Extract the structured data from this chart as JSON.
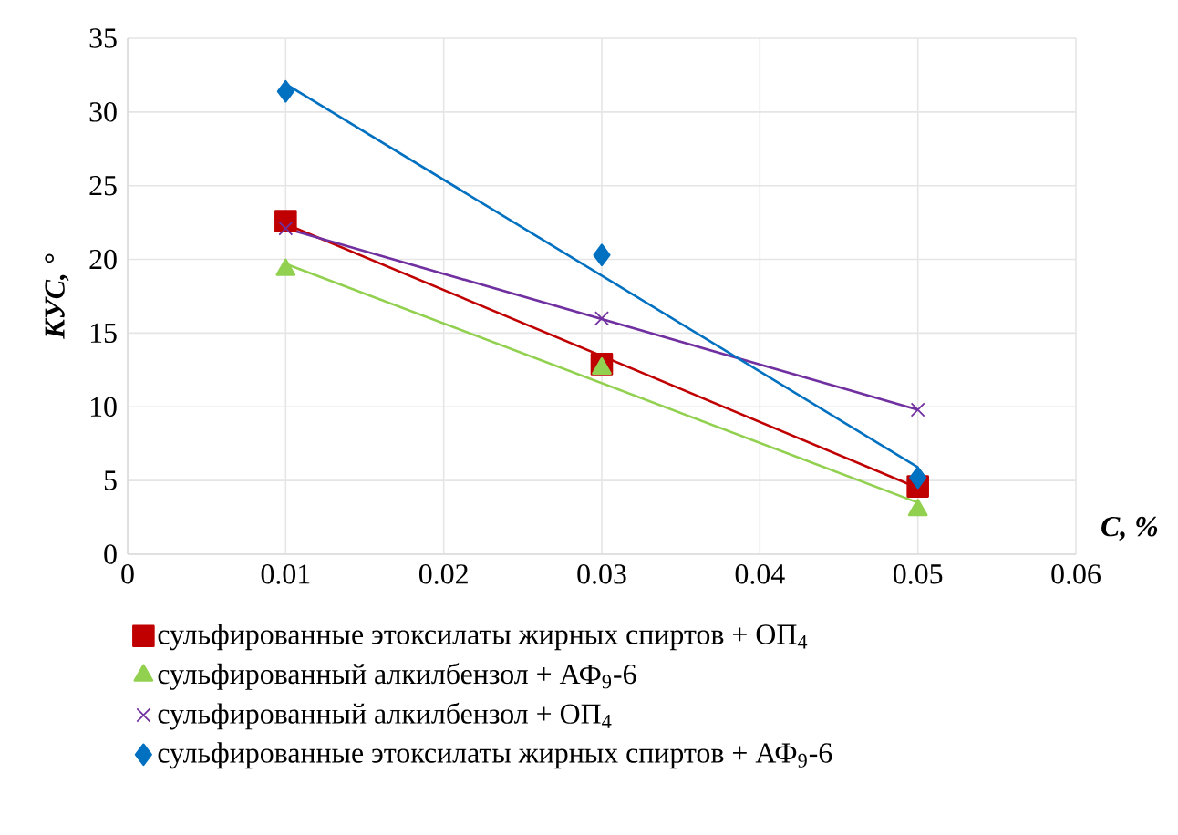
{
  "chart_data": {
    "type": "scatter",
    "xlabel": "*C, %*",
    "ylabel": "*КУС, °*",
    "xlim": [
      0,
      0.06
    ],
    "xticks": [
      0,
      0.01,
      0.02,
      0.03,
      0.04,
      0.05,
      0.06
    ],
    "ylim": [
      0,
      35
    ],
    "yticks": [
      0,
      5,
      10,
      15,
      20,
      25,
      30,
      35
    ],
    "grid": true,
    "legend": "bottom",
    "series": [
      {
        "name": "сульфированные этоксилаты жирных спиртов + ОП$_{4}$",
        "color": "#c00000",
        "marker": "square",
        "x": [
          0.01,
          0.03,
          0.05
        ],
        "values": [
          22.6,
          12.9,
          4.6
        ]
      },
      {
        "name": "сульфированный алкилбензол + АФ$_{9}$-6",
        "color": "#92d050",
        "marker": "triangle",
        "x": [
          0.01,
          0.03,
          0.05
        ],
        "values": [
          19.3,
          12.6,
          3.0
        ]
      },
      {
        "name": "сульфированный алкилбензол + ОП$_{4}$",
        "color": "#7030a0",
        "marker": "cross",
        "x": [
          0.01,
          0.03,
          0.05
        ],
        "values": [
          22.1,
          16.0,
          9.8
        ]
      },
      {
        "name": "сульфированные этоксилаты жирных спиртов + АФ$_{9}$-6",
        "color": "#0070c0",
        "marker": "diamond",
        "x": [
          0.01,
          0.03,
          0.05
        ],
        "values": [
          31.4,
          20.3,
          5.2
        ]
      },
      {
        "type": "line",
        "color": "#c00000",
        "marker": "none",
        "x": [
          0.01,
          0.05
        ],
        "values": [
          22.4,
          4.5
        ]
      },
      {
        "type": "line",
        "color": "#92d050",
        "marker": "none",
        "x": [
          0.01,
          0.05
        ],
        "values": [
          19.7,
          3.5
        ]
      },
      {
        "type": "line",
        "color": "#7030a0",
        "marker": "none",
        "x": [
          0.01,
          0.05
        ],
        "values": [
          22.1,
          9.8
        ]
      },
      {
        "type": "line",
        "color": "#0070c0",
        "marker": "none",
        "x": [
          0.01,
          0.05
        ],
        "values": [
          31.9,
          5.9
        ]
      }
    ]
  }
}
